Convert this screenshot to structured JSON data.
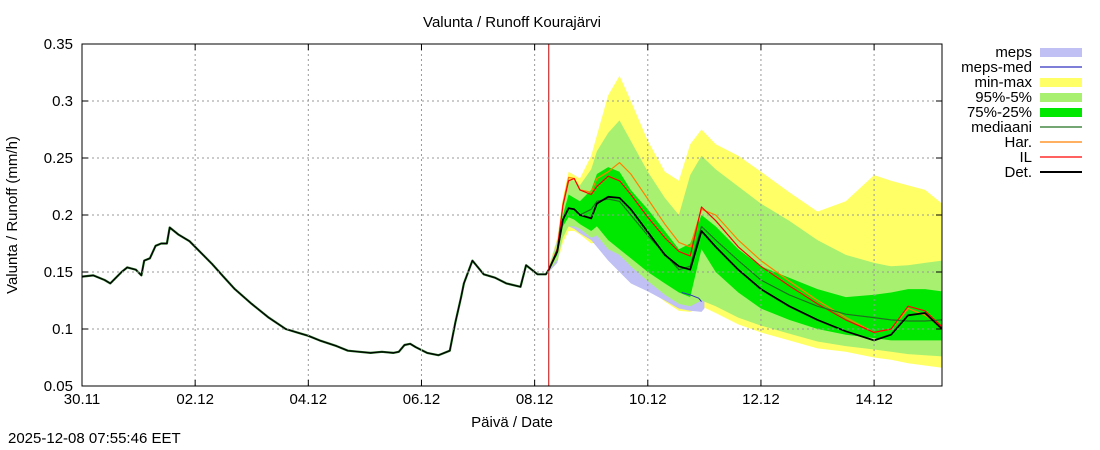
{
  "chart_data": {
    "type": "line",
    "title": "Valunta / Runoff  Kourajärvi",
    "xlabel": "Päivä / Date",
    "ylabel": "Valunta / Runoff (mm/h)",
    "ylim": [
      0.05,
      0.35
    ],
    "xlim": [
      0,
      15.2
    ],
    "grid": true,
    "legend_position": "right",
    "y_ticks": [
      "0.05",
      "0.1",
      "0.15",
      "0.2",
      "0.25",
      "0.3",
      "0.35"
    ],
    "y_tick_values": [
      0.05,
      0.1,
      0.15,
      0.2,
      0.25,
      0.3,
      0.35
    ],
    "x_ticks": [
      "30.11",
      "02.12",
      "04.12",
      "06.12",
      "08.12",
      "10.12",
      "12.12",
      "14.12"
    ],
    "x_tick_values": [
      0,
      2,
      4,
      6,
      8,
      10,
      12,
      14
    ],
    "forecast_start_day": 8.25,
    "colors": {
      "meps": "#c0c0f4",
      "meps_med": "#3030c0",
      "minmax": "#ffff66",
      "p95_5": "#a8f070",
      "p75_25": "#00e800",
      "median": "#207020",
      "har": "#ff8000",
      "il": "#ff0000",
      "det": "#000000",
      "forecast_line": "#c00000",
      "grid": "#999999"
    },
    "legend": [
      {
        "label": "meps",
        "kind": "band",
        "color_key": "meps"
      },
      {
        "label": "meps-med",
        "kind": "line",
        "color_key": "meps_med"
      },
      {
        "label": "min-max",
        "kind": "band",
        "color_key": "minmax"
      },
      {
        "label": "95%-5%",
        "kind": "band",
        "color_key": "p95_5"
      },
      {
        "label": "75%-25%",
        "kind": "band",
        "color_key": "p75_25"
      },
      {
        "label": "mediaani",
        "kind": "line",
        "color_key": "median"
      },
      {
        "label": "Har.",
        "kind": "line",
        "color_key": "har"
      },
      {
        "label": "IL",
        "kind": "line",
        "color_key": "il"
      },
      {
        "label": "Det.",
        "kind": "line",
        "color_key": "det"
      }
    ],
    "series": {
      "observed": {
        "name": "Det. (history)",
        "x": [
          0,
          0.2,
          0.4,
          0.5,
          0.7,
          0.8,
          0.95,
          1.05,
          1.1,
          1.2,
          1.3,
          1.4,
          1.5,
          1.55,
          1.7,
          1.9,
          2.1,
          2.3,
          2.5,
          2.7,
          3.0,
          3.3,
          3.6,
          3.8,
          4.0,
          4.2,
          4.5,
          4.7,
          4.9,
          5.1,
          5.3,
          5.5,
          5.6,
          5.7,
          5.8,
          5.9,
          6.1,
          6.3,
          6.35,
          6.5,
          6.6,
          6.7,
          6.75,
          6.9,
          7.1,
          7.3,
          7.5,
          7.75,
          7.85,
          7.95,
          8.05,
          8.2,
          8.25
        ],
        "y": [
          0.146,
          0.147,
          0.143,
          0.14,
          0.15,
          0.154,
          0.152,
          0.147,
          0.16,
          0.162,
          0.173,
          0.175,
          0.175,
          0.189,
          0.183,
          0.177,
          0.167,
          0.157,
          0.146,
          0.135,
          0.122,
          0.11,
          0.1,
          0.097,
          0.094,
          0.09,
          0.085,
          0.081,
          0.08,
          0.079,
          0.08,
          0.079,
          0.08,
          0.086,
          0.087,
          0.084,
          0.079,
          0.077,
          0.078,
          0.081,
          0.106,
          0.128,
          0.14,
          0.16,
          0.148,
          0.145,
          0.14,
          0.137,
          0.156,
          0.152,
          0.148,
          0.148,
          0.152
        ]
      },
      "forecast_x": [
        8.25,
        8.4,
        8.5,
        8.6,
        8.7,
        8.8,
        9.0,
        9.1,
        9.3,
        9.5,
        9.7,
        10.0,
        10.3,
        10.55,
        10.75,
        10.95,
        11.2,
        11.6,
        12.0,
        12.5,
        13.0,
        13.5,
        14.0,
        14.3,
        14.6,
        14.9,
        15.2
      ],
      "min_max": {
        "low": [
          0.15,
          0.158,
          0.176,
          0.186,
          0.186,
          0.183,
          0.175,
          0.176,
          0.165,
          0.16,
          0.148,
          0.136,
          0.124,
          0.116,
          0.115,
          0.12,
          0.114,
          0.104,
          0.097,
          0.09,
          0.083,
          0.08,
          0.075,
          0.073,
          0.07,
          0.068,
          0.066
        ],
        "high": [
          0.155,
          0.18,
          0.215,
          0.238,
          0.235,
          0.232,
          0.252,
          0.27,
          0.305,
          0.322,
          0.3,
          0.265,
          0.238,
          0.23,
          0.262,
          0.275,
          0.262,
          0.252,
          0.238,
          0.22,
          0.203,
          0.212,
          0.235,
          0.23,
          0.226,
          0.222,
          0.21
        ]
      },
      "p95_5": {
        "low": [
          0.151,
          0.161,
          0.18,
          0.19,
          0.19,
          0.188,
          0.18,
          0.182,
          0.17,
          0.165,
          0.155,
          0.142,
          0.13,
          0.122,
          0.12,
          0.125,
          0.12,
          0.11,
          0.103,
          0.096,
          0.089,
          0.085,
          0.082,
          0.08,
          0.078,
          0.077,
          0.076
        ],
        "high": [
          0.154,
          0.176,
          0.208,
          0.232,
          0.23,
          0.226,
          0.24,
          0.256,
          0.272,
          0.283,
          0.265,
          0.238,
          0.215,
          0.2,
          0.235,
          0.252,
          0.24,
          0.225,
          0.21,
          0.195,
          0.178,
          0.165,
          0.158,
          0.155,
          0.156,
          0.158,
          0.16
        ]
      },
      "p75_25": {
        "low": [
          0.152,
          0.165,
          0.19,
          0.198,
          0.196,
          0.192,
          0.186,
          0.19,
          0.178,
          0.17,
          0.162,
          0.15,
          0.14,
          0.132,
          0.128,
          0.17,
          0.15,
          0.132,
          0.118,
          0.108,
          0.1,
          0.095,
          0.092,
          0.09,
          0.09,
          0.09,
          0.09
        ],
        "high": [
          0.153,
          0.172,
          0.2,
          0.218,
          0.215,
          0.212,
          0.222,
          0.236,
          0.242,
          0.238,
          0.222,
          0.205,
          0.186,
          0.17,
          0.175,
          0.2,
          0.19,
          0.17,
          0.155,
          0.145,
          0.135,
          0.128,
          0.13,
          0.132,
          0.135,
          0.135,
          0.133
        ]
      },
      "median": [
        0.152,
        0.168,
        0.196,
        0.206,
        0.205,
        0.2,
        0.205,
        0.212,
        0.214,
        0.212,
        0.2,
        0.182,
        0.166,
        0.152,
        0.155,
        0.19,
        0.178,
        0.16,
        0.143,
        0.13,
        0.12,
        0.113,
        0.11,
        0.108,
        0.107,
        0.107,
        0.108
      ],
      "deterministic": [
        0.152,
        0.168,
        0.196,
        0.206,
        0.205,
        0.2,
        0.197,
        0.21,
        0.216,
        0.215,
        0.205,
        0.185,
        0.165,
        0.155,
        0.152,
        0.186,
        0.172,
        0.152,
        0.135,
        0.12,
        0.108,
        0.098,
        0.09,
        0.095,
        0.112,
        0.114,
        0.1
      ],
      "il": [
        0.152,
        0.17,
        0.208,
        0.23,
        0.232,
        0.222,
        0.218,
        0.225,
        0.234,
        0.23,
        0.218,
        0.198,
        0.18,
        0.168,
        0.164,
        0.207,
        0.195,
        0.172,
        0.155,
        0.138,
        0.122,
        0.108,
        0.097,
        0.1,
        0.12,
        0.116,
        0.102
      ],
      "har": [
        0.152,
        0.17,
        0.21,
        0.233,
        0.232,
        0.222,
        0.22,
        0.232,
        0.238,
        0.246,
        0.236,
        0.214,
        0.192,
        0.176,
        0.172,
        0.205,
        0.2,
        0.178,
        0.16,
        0.142,
        0.125,
        0.11,
        0.097,
        0.1,
        0.118,
        0.112,
        0.102
      ],
      "meps": {
        "x": [
          8.25,
          8.4,
          8.5,
          8.6,
          8.7,
          8.8,
          9.0,
          9.1,
          9.3,
          9.5,
          9.7,
          10.0,
          10.3,
          10.55,
          10.75,
          10.95,
          11.0
        ],
        "low": [
          0.15,
          0.158,
          0.182,
          0.19,
          0.188,
          0.184,
          0.178,
          0.172,
          0.16,
          0.15,
          0.14,
          0.133,
          0.125,
          0.118,
          0.116,
          0.115,
          0.118
        ],
        "high": [
          0.154,
          0.178,
          0.212,
          0.225,
          0.222,
          0.216,
          0.205,
          0.205,
          0.19,
          0.172,
          0.16,
          0.148,
          0.138,
          0.13,
          0.128,
          0.126,
          0.126
        ]
      },
      "meps_med": {
        "x": [
          10.6,
          10.75,
          10.9,
          10.95
        ],
        "y": [
          0.132,
          0.13,
          0.127,
          0.124
        ]
      }
    }
  },
  "timestamp": "2025-12-08 07:55:46 EET"
}
